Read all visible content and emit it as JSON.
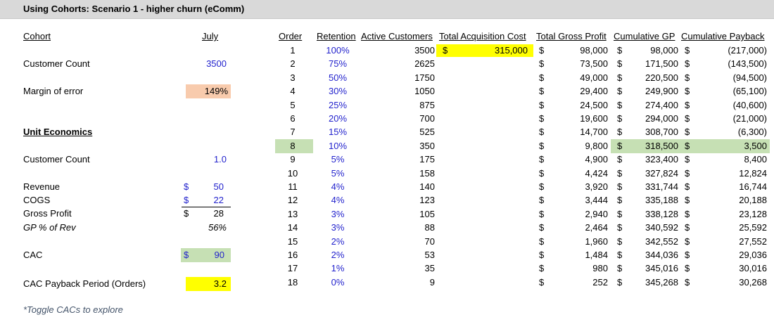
{
  "title": "Using Cohorts: Scenario 1 - higher churn (eComm)",
  "left": {
    "cohort_label": "Cohort",
    "cohort_month": "July",
    "customer_count_label": "Customer Count",
    "customer_count_value": "3500",
    "margin_of_error_label": "Margin of error",
    "margin_of_error_value": "149%",
    "unit_economics_label": "Unit Economics",
    "unit_customer_count_label": "Customer Count",
    "unit_customer_count_value": "1.0",
    "revenue_label": "Revenue",
    "revenue_value": "50",
    "cogs_label": "COGS",
    "cogs_value": "22",
    "gross_profit_label": "Gross Profit",
    "gross_profit_value": "28",
    "gp_pct_label": "GP % of Rev",
    "gp_pct_value": "56%",
    "cac_label": "CAC",
    "cac_value": "90",
    "payback_label": "CAC Payback Period (Orders)",
    "payback_value": "3.2",
    "currency_symbol": "$",
    "footnote": "*Toggle CACs to explore"
  },
  "table": {
    "headers": {
      "order": "Order",
      "retention": "Retention",
      "active": "Active Customers",
      "acq_cost": "Total Acquisition Cost",
      "gross_profit": "Total Gross Profit",
      "cum_gp": "Cumulative GP",
      "cum_payback": "Cumulative Payback"
    },
    "currency_symbol": "$",
    "acquisition_cost": "315,000",
    "rows": [
      {
        "order": "1",
        "retention": "100%",
        "active": "3500",
        "gp": "98,000",
        "cum_gp": "98,000",
        "payback": "(217,000)"
      },
      {
        "order": "2",
        "retention": "75%",
        "active": "2625",
        "gp": "73,500",
        "cum_gp": "171,500",
        "payback": "(143,500)"
      },
      {
        "order": "3",
        "retention": "50%",
        "active": "1750",
        "gp": "49,000",
        "cum_gp": "220,500",
        "payback": "(94,500)"
      },
      {
        "order": "4",
        "retention": "30%",
        "active": "1050",
        "gp": "29,400",
        "cum_gp": "249,900",
        "payback": "(65,100)"
      },
      {
        "order": "5",
        "retention": "25%",
        "active": "875",
        "gp": "24,500",
        "cum_gp": "274,400",
        "payback": "(40,600)"
      },
      {
        "order": "6",
        "retention": "20%",
        "active": "700",
        "gp": "19,600",
        "cum_gp": "294,000",
        "payback": "(21,000)"
      },
      {
        "order": "7",
        "retention": "15%",
        "active": "525",
        "gp": "14,700",
        "cum_gp": "308,700",
        "payback": "(6,300)"
      },
      {
        "order": "8",
        "retention": "10%",
        "active": "350",
        "gp": "9,800",
        "cum_gp": "318,500",
        "payback": "3,500"
      },
      {
        "order": "9",
        "retention": "5%",
        "active": "175",
        "gp": "4,900",
        "cum_gp": "323,400",
        "payback": "8,400"
      },
      {
        "order": "10",
        "retention": "5%",
        "active": "158",
        "gp": "4,424",
        "cum_gp": "327,824",
        "payback": "12,824"
      },
      {
        "order": "11",
        "retention": "4%",
        "active": "140",
        "gp": "3,920",
        "cum_gp": "331,744",
        "payback": "16,744"
      },
      {
        "order": "12",
        "retention": "4%",
        "active": "123",
        "gp": "3,444",
        "cum_gp": "335,188",
        "payback": "20,188"
      },
      {
        "order": "13",
        "retention": "3%",
        "active": "105",
        "gp": "2,940",
        "cum_gp": "338,128",
        "payback": "23,128"
      },
      {
        "order": "14",
        "retention": "3%",
        "active": "88",
        "gp": "2,464",
        "cum_gp": "340,592",
        "payback": "25,592"
      },
      {
        "order": "15",
        "retention": "2%",
        "active": "70",
        "gp": "1,960",
        "cum_gp": "342,552",
        "payback": "27,552"
      },
      {
        "order": "16",
        "retention": "2%",
        "active": "53",
        "gp": "1,484",
        "cum_gp": "344,036",
        "payback": "29,036"
      },
      {
        "order": "17",
        "retention": "1%",
        "active": "35",
        "gp": "980",
        "cum_gp": "345,016",
        "payback": "30,016"
      },
      {
        "order": "18",
        "retention": "0%",
        "active": "9",
        "gp": "252",
        "cum_gp": "345,268",
        "payback": "30,268"
      }
    ]
  },
  "colors": {
    "input_blue": "#1f1fcc",
    "highlight_orange": "#f8cbad",
    "highlight_green": "#c6e0b4",
    "highlight_yellow": "#ffff00",
    "title_bar": "#d9d9d9"
  }
}
